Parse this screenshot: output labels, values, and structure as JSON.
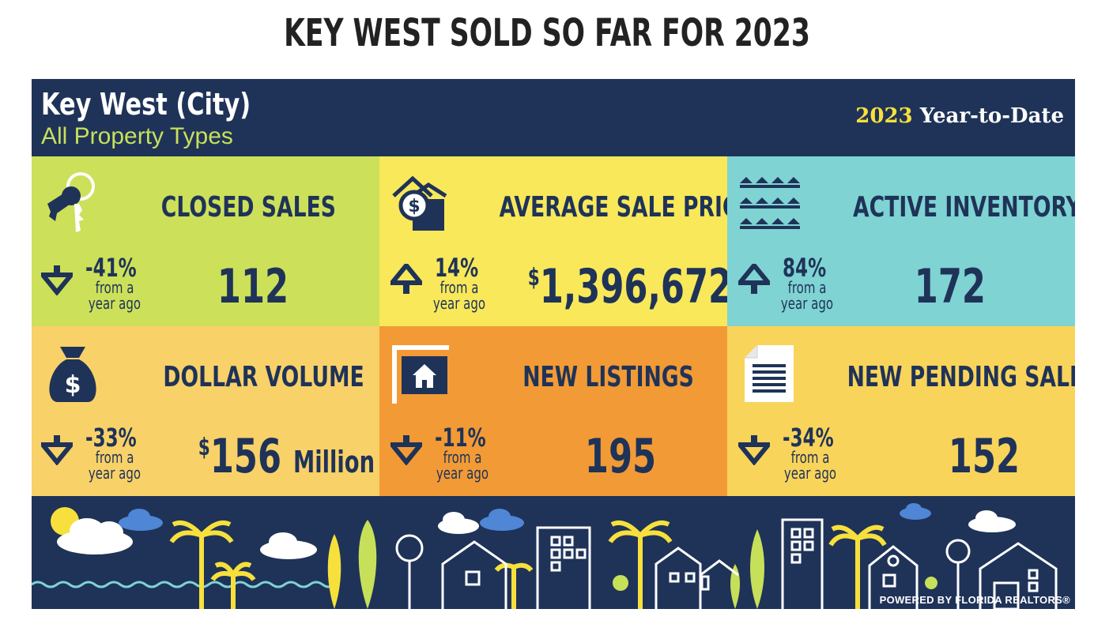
{
  "page_title": "KEY WEST SOLD SO FAR FOR 2023",
  "header": {
    "city": "Key West (City)",
    "property_types": "All Property Types",
    "ytd_year": "2023",
    "ytd_label": "Year-to-Date"
  },
  "tiles": [
    {
      "label": "CLOSED SALES",
      "value": "112",
      "change": "-41%",
      "from": "from a",
      "ago": "year ago",
      "direction": "down",
      "color": "#cce05a",
      "icon": "keys-icon"
    },
    {
      "label": "AVERAGE SALE PRICE",
      "value_prefix": "$",
      "value": "1,396,672",
      "change": "14%",
      "from": "from a",
      "ago": "year ago",
      "direction": "up",
      "color": "#f8e85a",
      "icon": "house-dollar-icon"
    },
    {
      "label": "ACTIVE INVENTORY",
      "value": "172",
      "change": "84%",
      "from": "from a",
      "ago": "year ago",
      "direction": "up",
      "color": "#7fd3d3",
      "icon": "houses-rows-icon"
    },
    {
      "label": "DOLLAR VOLUME",
      "value_prefix": "$",
      "value": "156",
      "value_unit": "Million",
      "change": "-33%",
      "from": "from a",
      "ago": "year ago",
      "direction": "down",
      "color": "#f9d169",
      "icon": "money-bag-icon"
    },
    {
      "label": "NEW LISTINGS",
      "value": "195",
      "change": "-11%",
      "from": "from a",
      "ago": "year ago",
      "direction": "down",
      "color": "#f29a36",
      "icon": "listing-sign-icon"
    },
    {
      "label": "NEW PENDING SALES",
      "value": "152",
      "change": "-34%",
      "from": "from a",
      "ago": "year ago",
      "direction": "down",
      "color": "#f9d45a",
      "icon": "document-icon"
    }
  ],
  "footer": {
    "powered_by": "POWERED BY FLORIDA REALTORS®"
  },
  "colors": {
    "navy": "#1f3358",
    "green_text": "#c7e05a",
    "yellow_text": "#f7e03c"
  }
}
